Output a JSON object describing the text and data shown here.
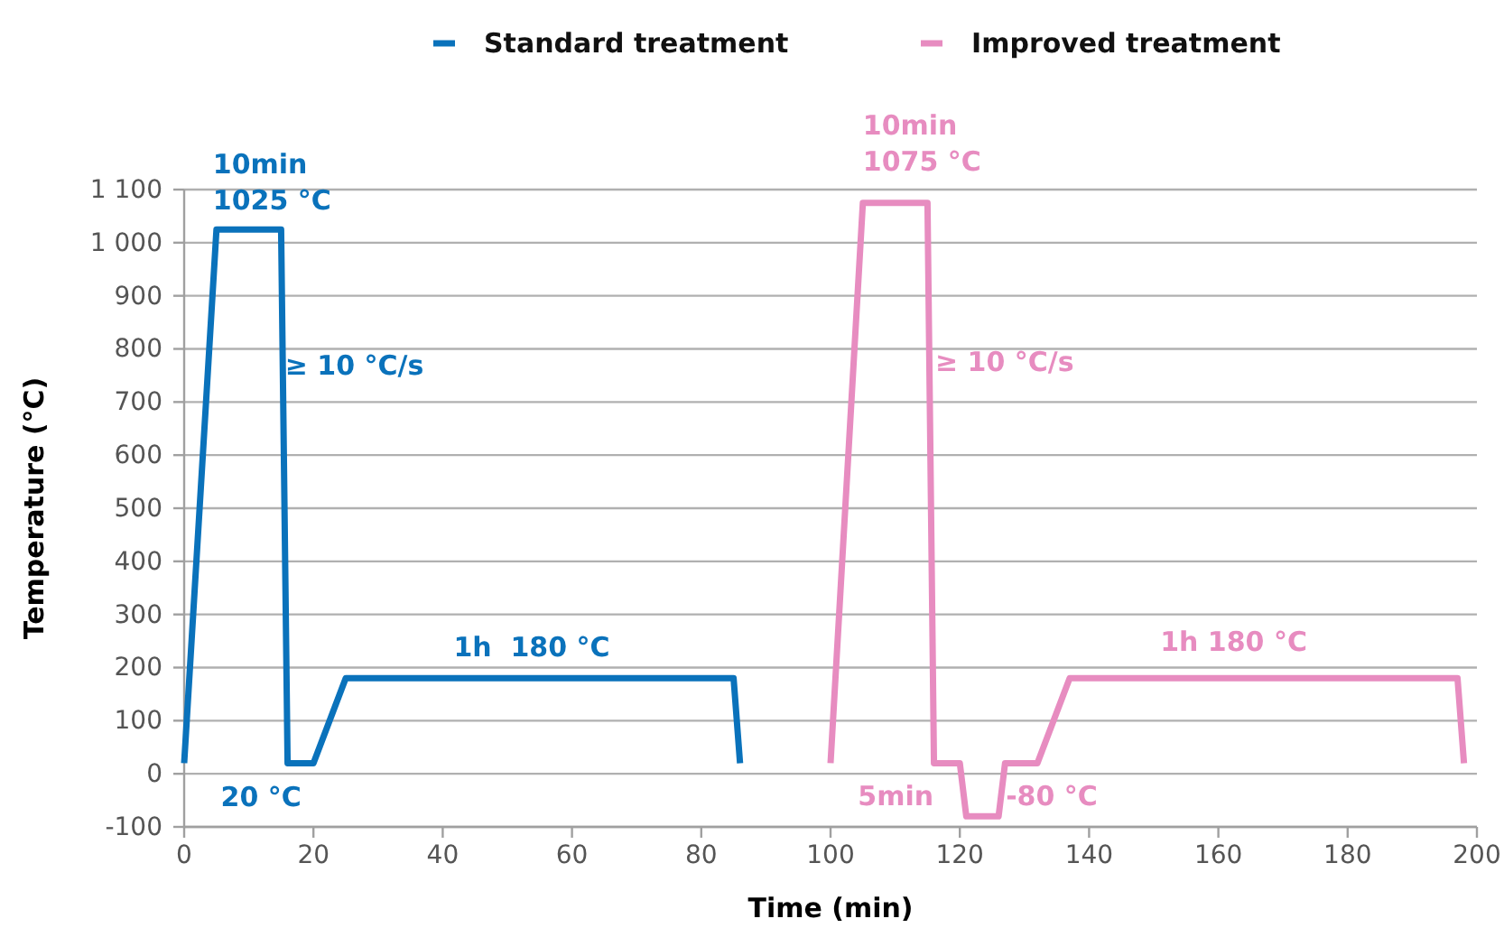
{
  "chart_data": {
    "type": "line",
    "xlabel": "Time (min)",
    "ylabel": "Temperature (°C)",
    "legend": "top",
    "grid": "y",
    "line_style": "solid",
    "marker": "none",
    "xlim": [
      0,
      200
    ],
    "xticks": [
      0,
      20,
      40,
      60,
      80,
      100,
      120,
      140,
      160,
      180,
      200
    ],
    "ylim": [
      -100,
      1100
    ],
    "yticks": [
      -100,
      0,
      100,
      200,
      300,
      400,
      500,
      600,
      700,
      800,
      900,
      {
        "value": 1000,
        "label": "1 000"
      },
      {
        "value": 1100,
        "label": "1 100"
      }
    ],
    "series": [
      {
        "name": "Standard treatment",
        "color": "#0a72bb",
        "x": [
          0,
          5,
          15,
          16,
          20,
          25,
          85,
          86
        ],
        "values": [
          20,
          1025,
          1025,
          20,
          20,
          180,
          180,
          20
        ]
      },
      {
        "name": "Improved treatment",
        "color": "#e78cc0",
        "x": [
          100,
          105,
          115,
          116,
          120,
          121,
          126,
          127,
          132,
          137,
          197,
          198
        ],
        "values": [
          20,
          1075,
          1075,
          20,
          20,
          -80,
          -80,
          20,
          20,
          180,
          180,
          20
        ]
      }
    ],
    "annotations": [
      {
        "text": "10min",
        "x": 5,
        "y": 1025
      },
      {
        "text": "1025 °C",
        "x": 5,
        "y": 1025
      },
      {
        "text": "≥ 10 °C/s",
        "x": 15.6,
        "y": 751
      },
      {
        "text": "1h  180 °C",
        "x": 40,
        "y": 180
      },
      {
        "text": "20 °C",
        "x": 16,
        "y": 20
      },
      {
        "text": "10min",
        "x": 105,
        "y": 1075
      },
      {
        "text": "1075 °C",
        "x": 105,
        "y": 1075
      },
      {
        "text": "≥ 10 °C/s",
        "x": 116.2,
        "y": 758
      },
      {
        "text": "1h 180 °C",
        "x": 151,
        "y": 180
      },
      {
        "text": "5min",
        "x": 121,
        "y": -80
      },
      {
        "text": "-80 °C",
        "x": 126,
        "y": -80
      }
    ]
  }
}
